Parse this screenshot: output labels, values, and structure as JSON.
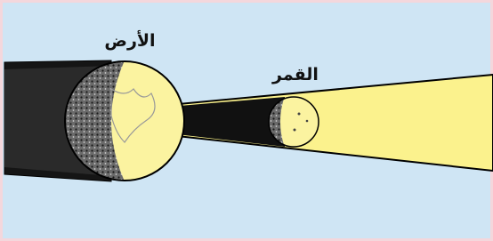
{
  "labels": {
    "earth": "الأرض",
    "moon": "القمر"
  }
}
